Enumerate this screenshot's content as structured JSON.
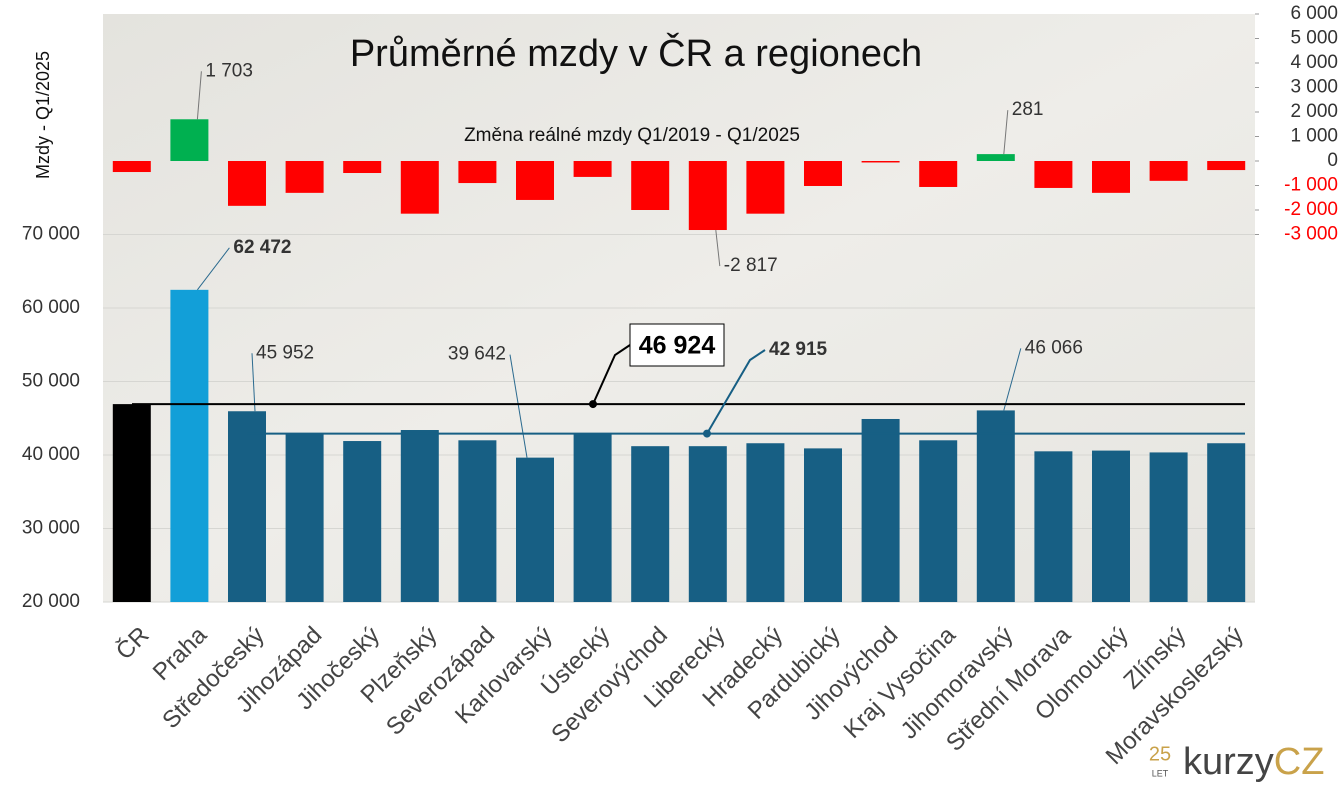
{
  "chart_data": {
    "type": "bar",
    "title": "Průměrné mzdy v ČR a regionech",
    "subtitle": "Změna reálné mzdy Q1/2019 - Q1/2025",
    "y_label": "Mzdy - Q1/2025",
    "categories": [
      "ČR",
      "Praha",
      "Středočeský",
      "Jihozápad",
      "Jihočeský",
      "Plzeňský",
      "Severozápad",
      "Karlovarský",
      "Ústecký",
      "Severovýchod",
      "Liberecký",
      "Hradecký",
      "Pardubický",
      "Jihovýchod",
      "Kraj Vysočina",
      "Jihomoravský",
      "Střední Morava",
      "Olomoucký",
      "Zlínský",
      "Moravskoslezský"
    ],
    "series": [
      {
        "values": [
          46924,
          62472,
          45952,
          43000,
          41900,
          43400,
          42000,
          39642,
          43000,
          41200,
          41200,
          41600,
          40900,
          44900,
          42000,
          46066,
          40500,
          40600,
          40350,
          41600
        ],
        "value_labels": [
          null,
          "62 472",
          "45 952",
          null,
          null,
          null,
          null,
          "39 642",
          null,
          null,
          null,
          null,
          null,
          null,
          null,
          "46 066",
          null,
          null,
          null,
          null
        ],
        "colors": [
          "#000000",
          "#129fd8",
          "#175f84",
          "#175f84",
          "#175f84",
          "#175f84",
          "#175f84",
          "#175f84",
          "#175f84",
          "#175f84",
          "#175f84",
          "#175f84",
          "#175f84",
          "#175f84",
          "#175f84",
          "#175f84",
          "#175f84",
          "#175f84",
          "#175f84",
          "#175f84"
        ]
      },
      {
        "axis": "y2",
        "values": [
          -450,
          1703,
          -1830,
          -1300,
          -490,
          -2150,
          -900,
          -1590,
          -650,
          -2000,
          -2817,
          -2150,
          -1020,
          -60,
          -1060,
          281,
          -1100,
          -1300,
          -810,
          -370
        ],
        "value_labels": [
          null,
          "1 703",
          null,
          null,
          null,
          null,
          null,
          null,
          null,
          null,
          "-2 817",
          null,
          null,
          null,
          null,
          "281",
          null,
          null,
          null,
          null
        ],
        "color": "#ff0000",
        "positive_color": "#00b050"
      }
    ],
    "reference_lines": [
      {
        "value": 46924,
        "label": "46 924",
        "color": "#000000"
      },
      {
        "value": 42915,
        "label": "42 915",
        "color": "#175f84"
      }
    ],
    "ylim": [
      20000,
      100000
    ],
    "yticks": [
      {
        "value": 20000,
        "label": "20 000"
      },
      {
        "value": 30000,
        "label": "30 000"
      },
      {
        "value": 40000,
        "label": "40 000"
      },
      {
        "value": 50000,
        "label": "50 000"
      },
      {
        "value": 60000,
        "label": "60 000"
      },
      {
        "value": 70000,
        "label": "70 000"
      }
    ],
    "y2lim": [
      -18000,
      6000
    ],
    "y2ticks": [
      {
        "value": -3000,
        "label": "-3 000"
      },
      {
        "value": -2000,
        "label": "-2 000"
      },
      {
        "value": -1000,
        "label": "-1 000"
      },
      0,
      {
        "value": 1000,
        "label": "1 000"
      },
      {
        "value": 2000,
        "label": "2 000"
      },
      {
        "value": 3000,
        "label": "3 000"
      },
      {
        "value": 4000,
        "label": "4 000"
      },
      {
        "value": 5000,
        "label": "5 000"
      },
      {
        "value": 6000,
        "label": "6 000"
      }
    ],
    "grid": true,
    "logo": {
      "number": "25",
      "sub": "LET",
      "text": "kurzy",
      "accent": "CZ"
    }
  }
}
